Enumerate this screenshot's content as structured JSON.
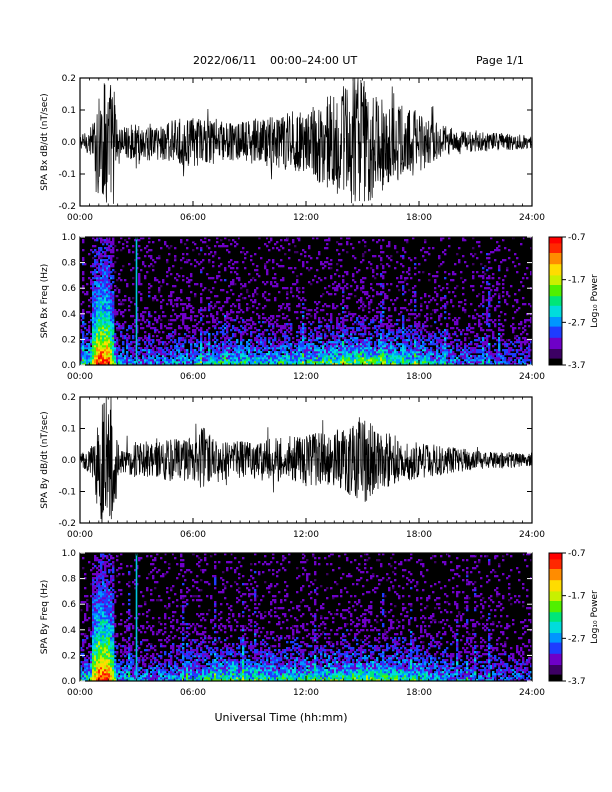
{
  "header": {
    "date": "2022/06/11",
    "range": "00:00–24:00 UT",
    "page": "Page 1/1"
  },
  "x_axis": {
    "label": "Universal Time (hh:mm)",
    "ticks": [
      "00:00",
      "06:00",
      "12:00",
      "18:00",
      "24:00"
    ]
  },
  "colorbar": {
    "label": "Log₁₀ Power",
    "ticks": [
      "-0.7",
      "-1.7",
      "-2.7",
      "-3.7"
    ],
    "colors": [
      "#000000",
      "#3c0064",
      "#6e00c8",
      "#1e3cff",
      "#0096ff",
      "#00dcdc",
      "#00e678",
      "#50f000",
      "#c8f000",
      "#ffdc00",
      "#ff8c00",
      "#ff2800",
      "#ff0000"
    ]
  },
  "chart_data": [
    {
      "type": "line",
      "title": "",
      "ylabel": "SPA Bx dB/dt (nT/sec)",
      "xlabel": "",
      "xlim": [
        0,
        24
      ],
      "ylim": [
        -0.2,
        0.2
      ],
      "yticks": [
        "0.2",
        "0.1",
        "0.0",
        "-0.1",
        "-0.2"
      ],
      "envelope": {
        "x_hours": [
          0,
          0.5,
          0.75,
          1.0,
          1.3,
          1.8,
          2.0,
          2.5,
          3,
          4,
          5,
          6,
          7,
          8,
          9,
          10,
          11,
          12,
          13,
          14,
          14.5,
          15,
          15.5,
          16,
          17,
          18,
          19,
          20,
          21,
          22,
          23,
          24
        ],
        "amplitude": [
          0.02,
          0.04,
          0.07,
          0.2,
          0.2,
          0.2,
          0.05,
          0.05,
          0.06,
          0.06,
          0.07,
          0.08,
          0.07,
          0.06,
          0.07,
          0.08,
          0.1,
          0.1,
          0.14,
          0.18,
          0.2,
          0.2,
          0.18,
          0.14,
          0.12,
          0.1,
          0.06,
          0.04,
          0.03,
          0.03,
          0.025,
          0.02
        ]
      }
    },
    {
      "type": "heatmap",
      "title": "",
      "ylabel": "SPA Bx Freq (Hz)",
      "xlabel": "",
      "xlim": [
        0,
        24
      ],
      "ylim": [
        0,
        1.0
      ],
      "yticks": [
        "1.0",
        "0.8",
        "0.6",
        "0.4",
        "0.2",
        "0.0"
      ],
      "z_range": [
        -3.7,
        -0.7
      ],
      "z_label": "Log₁₀ Power",
      "activity": {
        "x_hours": [
          0,
          0.5,
          1.0,
          1.5,
          2.0,
          3,
          4,
          6,
          8,
          10,
          12,
          14,
          15,
          16,
          18,
          20,
          22,
          24
        ],
        "level": [
          0.35,
          0.5,
          0.95,
          0.9,
          0.35,
          0.3,
          0.3,
          0.35,
          0.45,
          0.4,
          0.45,
          0.55,
          0.6,
          0.55,
          0.45,
          0.3,
          0.25,
          0.2
        ]
      },
      "vertical_streak_hours": 3.0
    },
    {
      "type": "line",
      "title": "",
      "ylabel": "SPA By dB/dt (nT/sec)",
      "xlabel": "",
      "xlim": [
        0,
        24
      ],
      "ylim": [
        -0.2,
        0.2
      ],
      "yticks": [
        "0.2",
        "0.1",
        "0.0",
        "-0.1",
        "-0.2"
      ],
      "envelope": {
        "x_hours": [
          0,
          0.5,
          0.75,
          1.0,
          1.3,
          1.8,
          2.0,
          2.5,
          3,
          4,
          5,
          6,
          6.5,
          7,
          8,
          9,
          10,
          11,
          12,
          13,
          14,
          15,
          15.5,
          16,
          17,
          18,
          19,
          20,
          21,
          22,
          23,
          24
        ],
        "amplitude": [
          0.02,
          0.04,
          0.07,
          0.2,
          0.2,
          0.2,
          0.05,
          0.05,
          0.06,
          0.06,
          0.07,
          0.07,
          0.12,
          0.07,
          0.06,
          0.06,
          0.07,
          0.07,
          0.08,
          0.09,
          0.1,
          0.14,
          0.12,
          0.1,
          0.07,
          0.06,
          0.05,
          0.04,
          0.03,
          0.025,
          0.025,
          0.02
        ]
      }
    },
    {
      "type": "heatmap",
      "title": "",
      "ylabel": "SPA By Freq (Hz)",
      "xlabel": "",
      "xlim": [
        0,
        24
      ],
      "ylim": [
        0,
        1.0
      ],
      "yticks": [
        "1.0",
        "0.8",
        "0.6",
        "0.4",
        "0.2",
        "0.0"
      ],
      "z_range": [
        -3.7,
        -0.7
      ],
      "z_label": "Log₁₀ Power",
      "activity": {
        "x_hours": [
          0,
          0.5,
          1.0,
          1.5,
          2.0,
          3,
          4,
          6,
          8,
          10,
          12,
          14,
          15,
          16,
          18,
          20,
          22,
          24
        ],
        "level": [
          0.35,
          0.5,
          0.95,
          0.9,
          0.35,
          0.3,
          0.3,
          0.4,
          0.5,
          0.45,
          0.45,
          0.5,
          0.55,
          0.5,
          0.45,
          0.3,
          0.25,
          0.2
        ]
      },
      "vertical_streak_hours": 3.0
    }
  ]
}
